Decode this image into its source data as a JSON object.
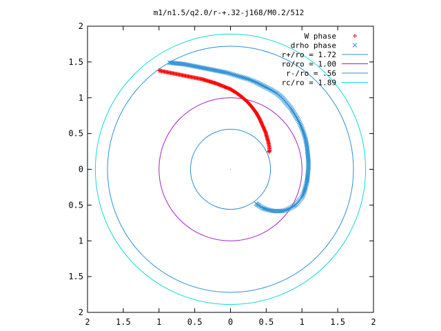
{
  "chart_data": {
    "type": "scatter",
    "title": "m1/n1.5/q2.0/r-+.32-j168/M0.2/512",
    "xlim": [
      -2,
      2
    ],
    "ylim": [
      -2,
      2
    ],
    "x_ticks": [
      -2,
      -1.5,
      -1,
      -0.5,
      0,
      0.5,
      1,
      1.5,
      2
    ],
    "y_ticks": [
      -2,
      -1.5,
      -1,
      -0.5,
      0,
      0.5,
      1,
      1.5,
      2
    ],
    "x_tick_labels": [
      "2",
      "1.5",
      "1",
      "0.5",
      "0",
      "0.5",
      "1",
      "1.5",
      "2"
    ],
    "y_tick_labels": [
      "2",
      "1.5",
      "1",
      "0.5",
      "0",
      "0.5",
      "1",
      "1.5",
      "2"
    ],
    "grid": false,
    "legend_position": "top-right",
    "series": [
      {
        "name": "W phase",
        "kind": "points",
        "marker": "plus",
        "color": "#ff0000",
        "x": [
          -1.0,
          -0.9,
          -0.8,
          -0.7,
          -0.6,
          -0.5,
          -0.4,
          -0.3,
          -0.2,
          -0.1,
          0.0,
          0.08,
          0.16,
          0.24,
          0.3,
          0.36,
          0.41,
          0.45,
          0.49,
          0.51,
          0.53,
          0.54,
          0.545,
          0.545,
          0.54
        ],
        "y": [
          1.38,
          1.36,
          1.34,
          1.32,
          1.3,
          1.28,
          1.26,
          1.23,
          1.2,
          1.16,
          1.12,
          1.07,
          1.01,
          0.94,
          0.87,
          0.79,
          0.7,
          0.61,
          0.52,
          0.45,
          0.38,
          0.33,
          0.29,
          0.26,
          0.24
        ]
      },
      {
        "name": "drho phase",
        "kind": "points",
        "marker": "cross",
        "color": "#2a8fd4",
        "x": [
          -0.85,
          -0.75,
          -0.65,
          -0.55,
          -0.45,
          -0.35,
          -0.25,
          -0.15,
          -0.05,
          0.05,
          0.15,
          0.25,
          0.35,
          0.45,
          0.55,
          0.65,
          0.72,
          0.78,
          0.84,
          0.89,
          0.94,
          0.98,
          1.02,
          1.05,
          1.07,
          1.08,
          1.09,
          1.09,
          1.08,
          1.07,
          1.05,
          1.03,
          1.0,
          0.96,
          0.92,
          0.86,
          0.8,
          0.74,
          0.68,
          0.62,
          0.56,
          0.5,
          0.45,
          0.4,
          0.36
        ],
        "y": [
          1.49,
          1.48,
          1.47,
          1.45,
          1.43,
          1.41,
          1.39,
          1.37,
          1.35,
          1.32,
          1.29,
          1.26,
          1.22,
          1.17,
          1.12,
          1.06,
          1.0,
          0.93,
          0.86,
          0.78,
          0.7,
          0.62,
          0.52,
          0.42,
          0.32,
          0.22,
          0.12,
          0.02,
          -0.08,
          -0.17,
          -0.25,
          -0.32,
          -0.39,
          -0.44,
          -0.49,
          -0.53,
          -0.56,
          -0.58,
          -0.585,
          -0.585,
          -0.575,
          -0.56,
          -0.54,
          -0.51,
          -0.48
        ]
      },
      {
        "name": "r+/ro = 1.72",
        "kind": "circle",
        "radius": 1.72,
        "color": "#2a8fd4"
      },
      {
        "name": "ro/ro = 1.00",
        "kind": "circle",
        "radius": 1.0,
        "color": "#a020c8"
      },
      {
        "name": "r-/ro = .56",
        "kind": "circle",
        "radius": 0.56,
        "color": "#2a8fd4"
      },
      {
        "name": "rc/ro = 1.89",
        "kind": "circle",
        "radius": 1.89,
        "color": "#10d8d8"
      }
    ]
  }
}
